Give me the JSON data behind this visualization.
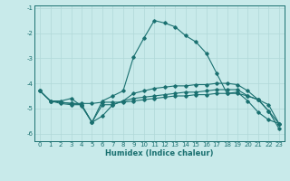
{
  "xlabel": "Humidex (Indice chaleur)",
  "bg_color": "#c8eaea",
  "grid_color": "#b0d8d8",
  "line_color": "#1a7070",
  "marker_color": "#1a7070",
  "xlim": [
    -0.5,
    23.5
  ],
  "ylim": [
    -6.3,
    -0.9
  ],
  "yticks": [
    -6,
    -5,
    -4,
    -3,
    -2,
    -1
  ],
  "xticks": [
    0,
    1,
    2,
    3,
    4,
    5,
    6,
    7,
    8,
    9,
    10,
    11,
    12,
    13,
    14,
    15,
    16,
    17,
    18,
    19,
    20,
    21,
    22,
    23
  ],
  "line1_x": [
    0,
    1,
    2,
    3,
    4,
    5,
    6,
    7,
    8,
    9,
    10,
    11,
    12,
    13,
    14,
    15,
    16,
    17,
    18,
    19,
    20,
    21,
    22,
    23
  ],
  "line1_y": [
    -4.3,
    -4.7,
    -4.7,
    -4.6,
    -4.9,
    -5.55,
    -4.7,
    -4.5,
    -4.3,
    -2.95,
    -2.2,
    -1.5,
    -1.6,
    -1.75,
    -2.1,
    -2.35,
    -2.8,
    -3.6,
    -4.4,
    -4.35,
    -4.7,
    -5.15,
    -5.45,
    -5.6
  ],
  "line2_x": [
    0,
    1,
    2,
    3,
    4,
    5,
    6,
    7,
    8,
    9,
    10,
    11,
    12,
    13,
    14,
    15,
    16,
    17,
    18,
    19,
    20,
    21,
    22,
    23
  ],
  "line2_y": [
    -4.3,
    -4.7,
    -4.75,
    -4.8,
    -4.8,
    -4.8,
    -4.75,
    -4.75,
    -4.75,
    -4.7,
    -4.65,
    -4.6,
    -4.55,
    -4.5,
    -4.5,
    -4.45,
    -4.45,
    -4.4,
    -4.4,
    -4.4,
    -4.5,
    -4.65,
    -4.85,
    -5.6
  ],
  "line3_x": [
    2,
    3,
    4,
    5,
    6,
    7,
    8,
    9,
    10,
    11,
    12,
    13,
    14,
    15,
    16,
    17,
    18,
    19,
    20,
    21,
    22,
    23
  ],
  "line3_y": [
    -4.75,
    -4.8,
    -4.85,
    -5.55,
    -5.3,
    -4.85,
    -4.7,
    -4.6,
    -4.55,
    -4.5,
    -4.45,
    -4.4,
    -4.35,
    -4.35,
    -4.3,
    -4.25,
    -4.25,
    -4.25,
    -4.5,
    -4.65,
    -5.1,
    -5.6
  ],
  "line4_x": [
    0,
    1,
    2,
    3,
    4,
    5,
    6,
    7,
    8,
    9,
    10,
    11,
    12,
    13,
    14,
    15,
    16,
    17,
    18,
    19,
    20,
    21,
    22,
    23
  ],
  "line4_y": [
    -4.3,
    -4.7,
    -4.8,
    -4.85,
    -4.85,
    -5.55,
    -4.85,
    -4.85,
    -4.7,
    -4.4,
    -4.3,
    -4.2,
    -4.15,
    -4.1,
    -4.1,
    -4.05,
    -4.05,
    -4.0,
    -4.0,
    -4.05,
    -4.3,
    -4.65,
    -5.1,
    -5.8
  ]
}
